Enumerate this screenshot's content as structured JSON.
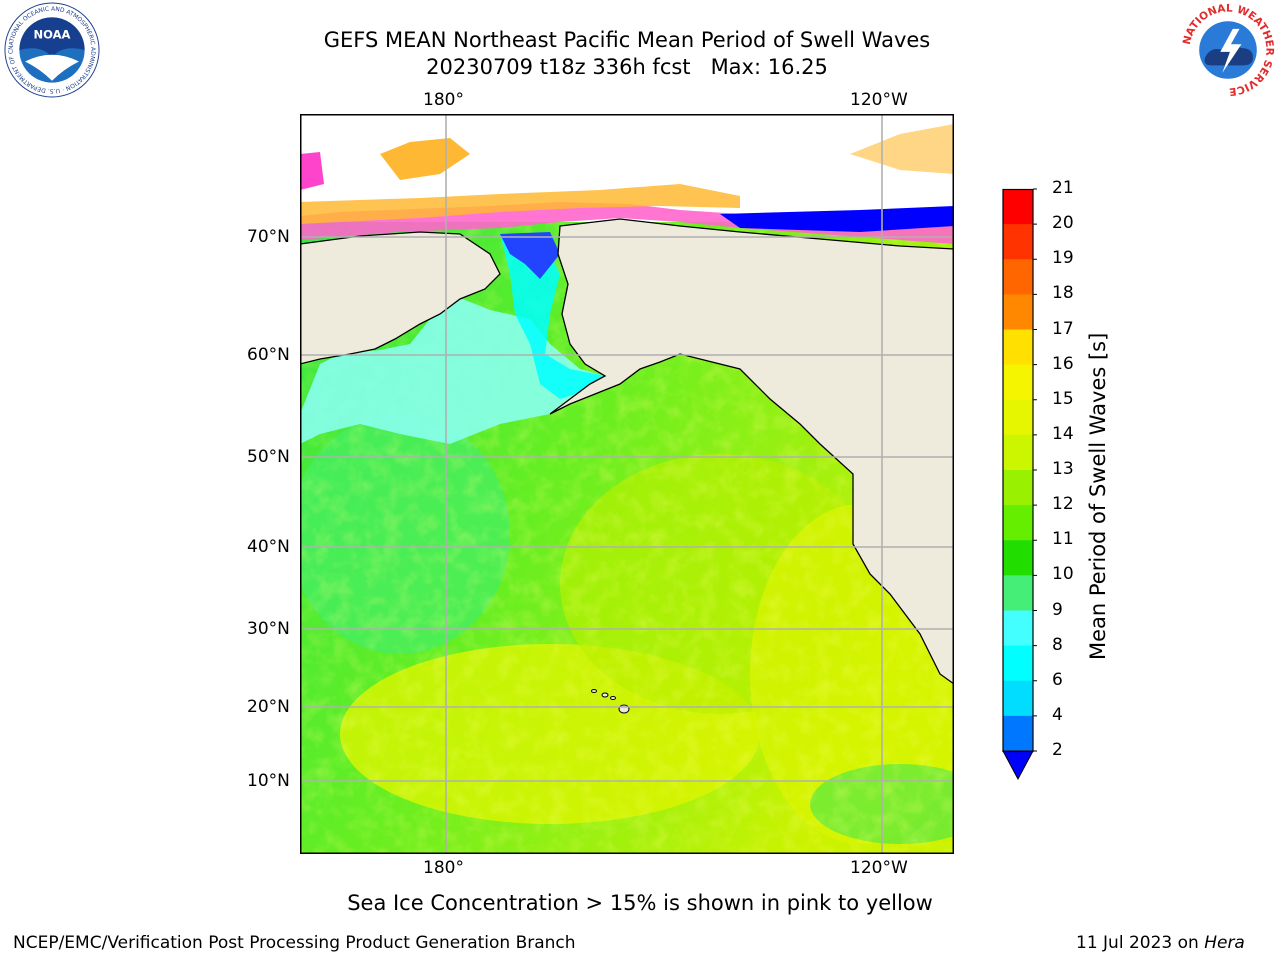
{
  "title": {
    "line1": "GEFS MEAN Northeast Pacific Mean Period of Swell Waves",
    "line2": "20230709 t18z 336h fcst   Max: 16.25"
  },
  "map": {
    "lon_labels_top": [
      "180°",
      "120°W"
    ],
    "lon_labels_bottom": [
      "180°",
      "120°W"
    ],
    "lat_labels": [
      "70°N",
      "60°N",
      "50°N",
      "40°N",
      "30°N",
      "20°N",
      "10°N"
    ],
    "colors": {
      "land": "#efebdc",
      "ocean_green": "#33e633",
      "ice_pink": "#ff66cc",
      "coast": "#000000",
      "grid": "#b0b0b0"
    }
  },
  "colorbar": {
    "label": "Mean Period of Swell Waves [s]",
    "ticks": [
      "21",
      "20",
      "19",
      "18",
      "17",
      "16",
      "15",
      "14",
      "13",
      "12",
      "11",
      "10",
      "9",
      "8",
      "6",
      "4",
      "2"
    ],
    "colors": [
      "#ff0000",
      "#ff3300",
      "#ff6600",
      "#ff8800",
      "#ffaa00",
      "#ffe000",
      "#f5f500",
      "#e6f500",
      "#ccf500",
      "#99f000",
      "#66ee00",
      "#22dd00",
      "#44ee77",
      "#88ffdd",
      "#44ffff",
      "#00ffff",
      "#00ddff",
      "#0077ff",
      "#0000ff"
    ]
  },
  "caption": "Sea Ice Concentration > 15% is shown in pink to yellow",
  "footer": {
    "left": "NCEP/EMC/Verification Post Processing Product Generation Branch",
    "right_date": "11 Jul 2023 on ",
    "right_host": "Hera"
  },
  "logos": {
    "noaa_text": "NOAA",
    "noaa_ring": "NATIONAL OCEANIC AND ATMOSPHERIC ADMINISTRATION · U.S. DEPARTMENT OF COMMERCE",
    "nws_ring": "NATIONAL WEATHER SERVICE"
  }
}
